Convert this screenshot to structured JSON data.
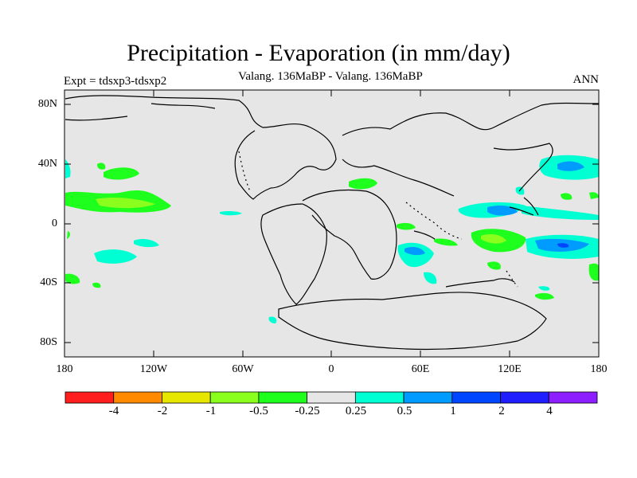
{
  "title": "Precipitation - Evaporation (in mm/day)",
  "subtitle": "Valang. 136MaBP - Valang. 136MaBP",
  "left_label": "Expt = tdsxp3-tdsxp2",
  "right_label": "ANN",
  "map": {
    "lat_ticks": [
      "80N",
      "40N",
      "0",
      "40S",
      "80S"
    ],
    "lon_ticks": [
      "180",
      "120W",
      "60W",
      "0",
      "60E",
      "120E",
      "180"
    ],
    "background_color": "#e6e6e6"
  },
  "colorbar": {
    "labels": [
      "-4",
      "-2",
      "-1",
      "-0.5",
      "-0.25",
      "0.25",
      "0.5",
      "1",
      "2",
      "4"
    ],
    "colors": [
      "#ff1e1e",
      "#ff8a00",
      "#e6e600",
      "#8aff1e",
      "#1eff1e",
      "#e6e6e6",
      "#00ffd2",
      "#009bff",
      "#0046ff",
      "#1e1eff",
      "#8c1eff"
    ]
  }
}
